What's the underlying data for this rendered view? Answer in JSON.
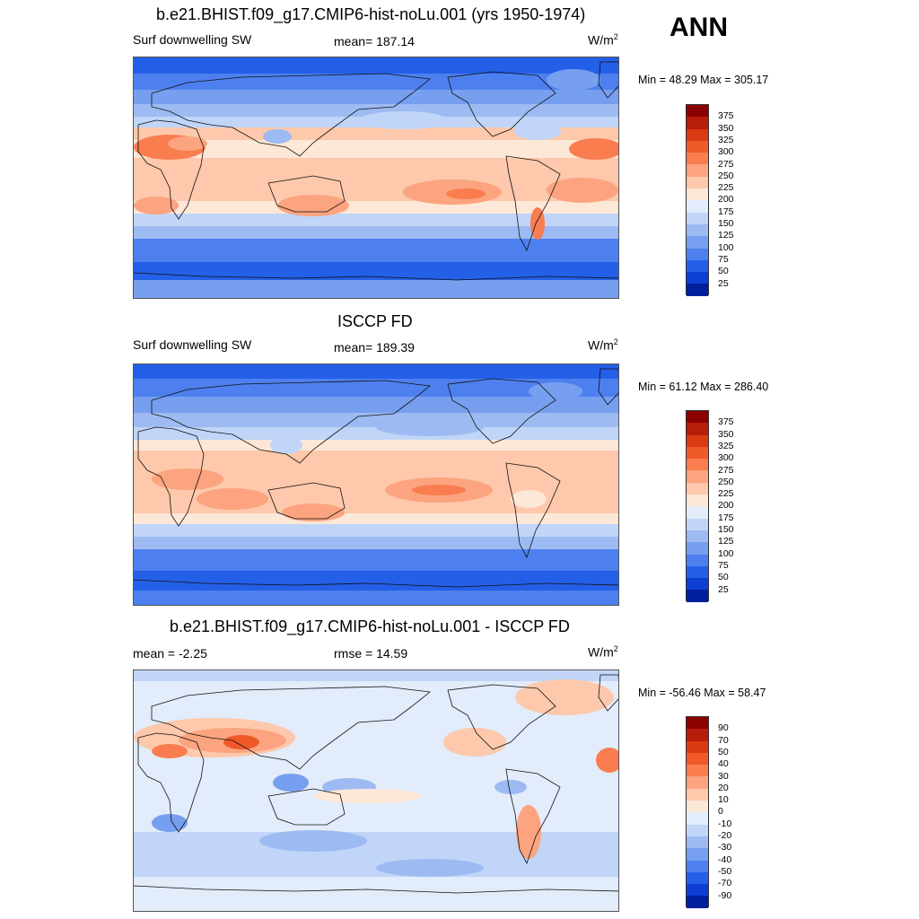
{
  "season": "ANN",
  "units_base": "W/m",
  "units_sup": "2",
  "panels": [
    {
      "id": "test",
      "title": "b.e21.BHIST.f09_g17.CMIP6-hist-noLu.001 (yrs 1950-1974)",
      "left_label": "Surf downwelling SW",
      "center_label": "mean= 187.14",
      "minmax": "Min =  48.29 Max = 305.17"
    },
    {
      "id": "obs",
      "title": "ISCCP FD",
      "left_label": "Surf downwelling SW",
      "center_label": "mean= 189.39",
      "minmax": "Min =  61.12 Max = 286.40"
    },
    {
      "id": "diff",
      "title": "b.e21.BHIST.f09_g17.CMIP6-hist-noLu.001 - ISCCP FD",
      "left_label": "mean =  -2.25",
      "center_label": "rmse =  14.59",
      "minmax": "Min = -56.46 Max =  58.47"
    }
  ],
  "colorbars": {
    "field": {
      "labels": [
        "375",
        "350",
        "325",
        "300",
        "275",
        "250",
        "225",
        "200",
        "175",
        "150",
        "125",
        "100",
        "75",
        "50",
        "25"
      ],
      "colors": [
        "#8b0000",
        "#b81c0a",
        "#d93a12",
        "#ef5a28",
        "#f97d4f",
        "#fba47f",
        "#fdc8ab",
        "#fde7d7",
        "#e2ecfa",
        "#c0d5f7",
        "#9dbbf2",
        "#779ff0",
        "#4d80ee",
        "#245fe8",
        "#0e3fd4",
        "#001f9c"
      ]
    },
    "diff": {
      "labels": [
        "90",
        "70",
        "50",
        "40",
        "30",
        "20",
        "10",
        "0",
        "-10",
        "-20",
        "-30",
        "-40",
        "-50",
        "-70",
        "-90"
      ],
      "colors": [
        "#8b0000",
        "#b81c0a",
        "#d93a12",
        "#ef5a28",
        "#f97d4f",
        "#fba47f",
        "#fdc8ab",
        "#fde7d7",
        "#e2ecfa",
        "#c0d5f7",
        "#9dbbf2",
        "#779ff0",
        "#4d80ee",
        "#245fe8",
        "#0e3fd4",
        "#001f9c"
      ]
    }
  }
}
